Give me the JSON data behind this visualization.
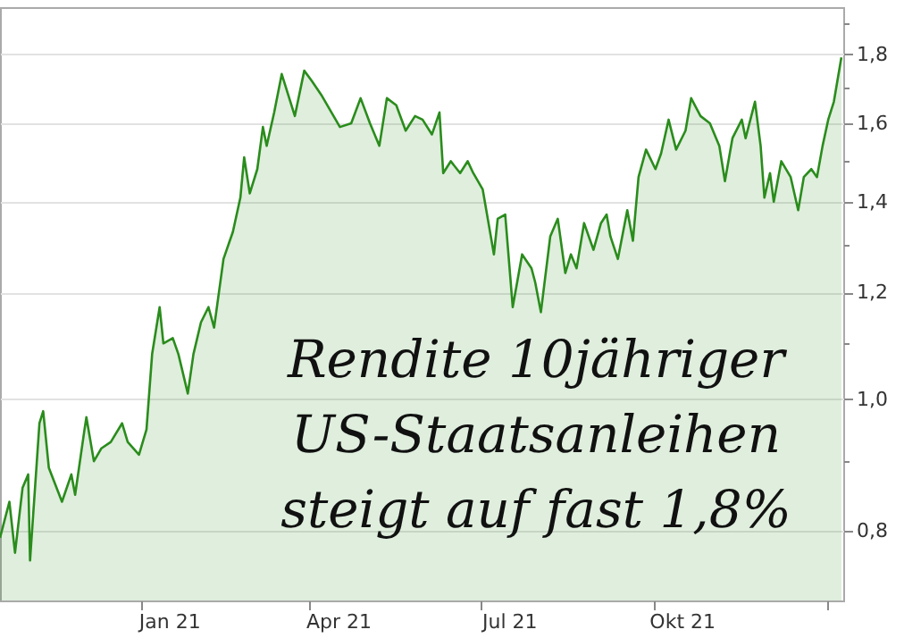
{
  "chart_data": {
    "type": "area",
    "log": true,
    "grid": "y",
    "annotations": [
      "Rendite 10jähriger",
      "US-Staatsanleihen",
      "steigt auf fast 1,8%"
    ],
    "xlim": [
      "2020-10-18",
      "2022-01-10"
    ],
    "xticks": [
      {
        "value": "2021-01-01",
        "label": null
      },
      {
        "value": "2021-01-16",
        "label": "Jan 21"
      },
      {
        "value": "2021-04-01",
        "label": null
      },
      {
        "value": "2021-04-16",
        "label": "Apr 21"
      },
      {
        "value": "2021-07-01",
        "label": null
      },
      {
        "value": "2021-07-16",
        "label": "Jul 21"
      },
      {
        "value": "2021-10-01",
        "label": null
      },
      {
        "value": "2021-10-16",
        "label": "Okt 21"
      },
      {
        "value": "2022-01-01",
        "label": null
      }
    ],
    "ylim": [
      0.71,
      1.95
    ],
    "yticks": [
      {
        "value": 0.8,
        "label": "0,8"
      },
      {
        "value": 0.9,
        "label": null
      },
      {
        "value": 1.0,
        "label": "1,0"
      },
      {
        "value": 1.1,
        "label": null
      },
      {
        "value": 1.2,
        "label": "1,2"
      },
      {
        "value": 1.3,
        "label": null
      },
      {
        "value": 1.4,
        "label": "1,4"
      },
      {
        "value": 1.5,
        "label": null
      },
      {
        "value": 1.6,
        "label": "1,6"
      },
      {
        "value": 1.7,
        "label": null
      },
      {
        "value": 1.8,
        "label": "1,8"
      },
      {
        "value": 1.9,
        "label": null
      }
    ],
    "x": [
      "2020-10-18",
      "2020-10-23",
      "2020-10-26",
      "2020-10-30",
      "2020-11-02",
      "2020-11-03",
      "2020-11-08",
      "2020-11-10",
      "2020-11-13",
      "2020-11-20",
      "2020-11-25",
      "2020-11-27",
      "2020-12-02",
      "2020-12-03",
      "2020-12-07",
      "2020-12-11",
      "2020-12-16",
      "2020-12-22",
      "2020-12-25",
      "2020-12-31",
      "2021-01-04",
      "2021-01-07",
      "2021-01-11",
      "2021-01-13",
      "2021-01-18",
      "2021-01-21",
      "2021-01-26",
      "2021-01-29",
      "2021-02-02",
      "2021-02-06",
      "2021-02-09",
      "2021-02-14",
      "2021-02-19",
      "2021-02-23",
      "2021-02-25",
      "2021-02-28",
      "2021-03-04",
      "2021-03-07",
      "2021-03-09",
      "2021-03-13",
      "2021-03-17",
      "2021-03-24",
      "2021-03-29",
      "2021-04-02",
      "2021-04-07",
      "2021-04-17",
      "2021-04-23",
      "2021-04-28",
      "2021-05-03",
      "2021-05-08",
      "2021-05-12",
      "2021-05-17",
      "2021-05-22",
      "2021-05-27",
      "2021-05-31",
      "2021-06-05",
      "2021-06-09",
      "2021-06-11",
      "2021-06-15",
      "2021-06-20",
      "2021-06-24",
      "2021-06-27",
      "2021-07-02",
      "2021-07-08",
      "2021-07-10",
      "2021-07-14",
      "2021-07-18",
      "2021-07-23",
      "2021-07-28",
      "2021-07-30",
      "2021-08-02",
      "2021-08-07",
      "2021-08-11",
      "2021-08-15",
      "2021-08-18",
      "2021-08-21",
      "2021-08-25",
      "2021-08-30",
      "2021-09-03",
      "2021-09-06",
      "2021-09-08",
      "2021-09-12",
      "2021-09-17",
      "2021-09-20",
      "2021-09-23",
      "2021-09-27",
      "2021-10-02",
      "2021-10-05",
      "2021-10-09",
      "2021-10-13",
      "2021-10-18",
      "2021-10-21",
      "2021-10-26",
      "2021-10-31",
      "2021-11-05",
      "2021-11-08",
      "2021-11-12",
      "2021-11-17",
      "2021-11-19",
      "2021-11-24",
      "2021-11-27",
      "2021-11-29",
      "2021-12-02",
      "2021-12-04",
      "2021-12-08",
      "2021-12-13",
      "2021-12-17",
      "2021-12-20",
      "2021-12-24",
      "2021-12-27",
      "2021-12-30",
      "2022-01-02",
      "2022-01-05",
      "2022-01-09"
    ],
    "series": [
      {
        "color": "#2a8c1c",
        "values": [
          0.79,
          0.84,
          0.77,
          0.86,
          0.88,
          0.76,
          0.96,
          0.98,
          0.89,
          0.84,
          0.88,
          0.85,
          0.95,
          0.97,
          0.9,
          0.92,
          0.93,
          0.96,
          0.93,
          0.91,
          0.95,
          1.08,
          1.17,
          1.1,
          1.11,
          1.08,
          1.01,
          1.08,
          1.14,
          1.17,
          1.13,
          1.27,
          1.33,
          1.41,
          1.51,
          1.42,
          1.48,
          1.59,
          1.54,
          1.63,
          1.74,
          1.62,
          1.75,
          1.72,
          1.68,
          1.59,
          1.6,
          1.67,
          1.6,
          1.54,
          1.67,
          1.65,
          1.58,
          1.62,
          1.61,
          1.57,
          1.63,
          1.47,
          1.5,
          1.47,
          1.5,
          1.47,
          1.43,
          1.28,
          1.36,
          1.37,
          1.17,
          1.28,
          1.25,
          1.22,
          1.16,
          1.32,
          1.36,
          1.24,
          1.28,
          1.25,
          1.35,
          1.29,
          1.35,
          1.37,
          1.32,
          1.27,
          1.38,
          1.31,
          1.46,
          1.53,
          1.48,
          1.52,
          1.61,
          1.53,
          1.58,
          1.67,
          1.62,
          1.6,
          1.54,
          1.45,
          1.56,
          1.61,
          1.56,
          1.66,
          1.54,
          1.41,
          1.47,
          1.4,
          1.5,
          1.46,
          1.38,
          1.46,
          1.48,
          1.46,
          1.54,
          1.61,
          1.66,
          1.79
        ]
      }
    ]
  }
}
